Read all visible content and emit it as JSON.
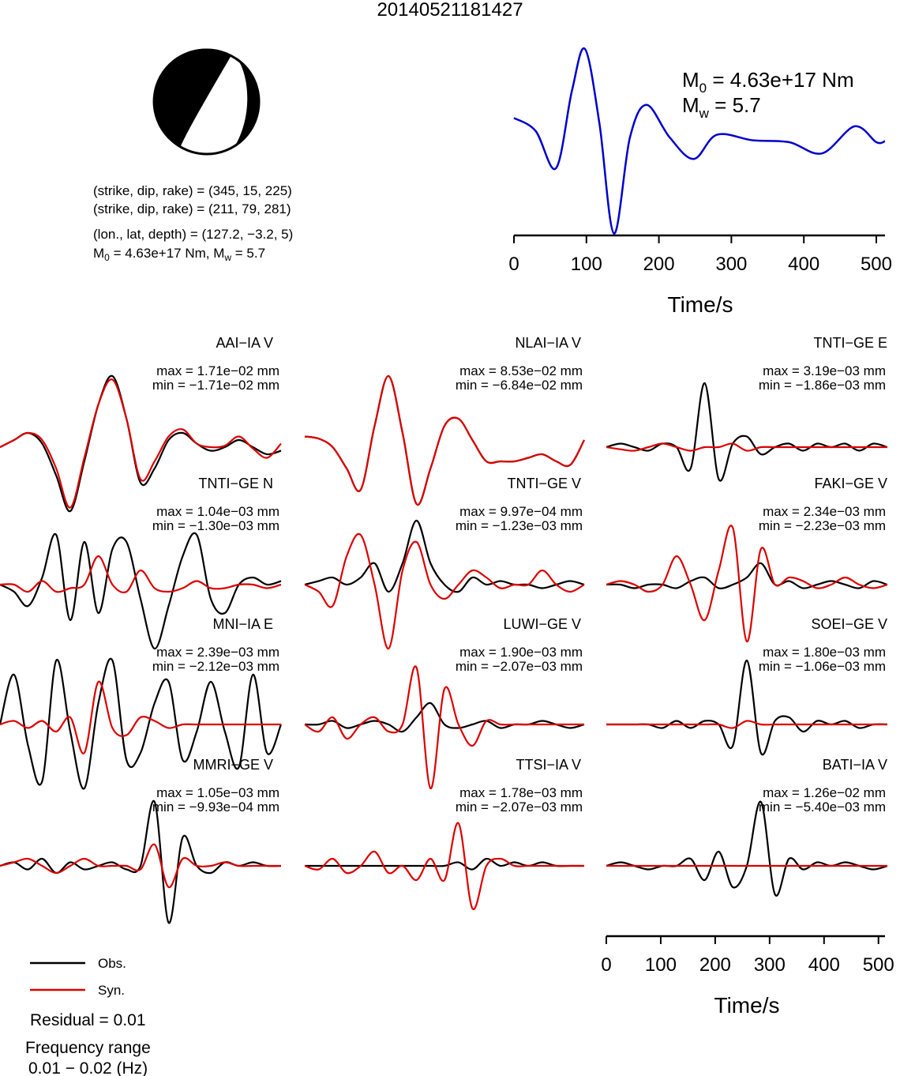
{
  "title": "20140521181427",
  "source_info": {
    "lines": [
      "(strike, dip, rake) = (345, 15, 225)",
      "(strike, dip, rake) = (211, 79, 281)",
      "(lon., lat, depth) = (127.2, −3.2, 5)"
    ],
    "m0_line_prefix": "M",
    "m0_line_sub": "0",
    "m0_line_mid": " = 4.63e+17 Nm, M",
    "m0_line_sub2": "w",
    "m0_line_end": " = 5.7"
  },
  "stf_labels": {
    "m0_prefix": "M",
    "m0_sub": "0",
    "m0_value": " = 4.63e+17 Nm",
    "mw_prefix": "M",
    "mw_sub": "w",
    "mw_value": " = 5.7"
  },
  "colors": {
    "observed": "#000000",
    "synthetic": "#dd0000",
    "stf": "#0000cc"
  },
  "legend": {
    "obs": "Obs.",
    "syn": "Syn."
  },
  "residual": "Residual = 0.01",
  "freq_label": "Frequency range",
  "freq_value": "0.01 − 0.02 (Hz)",
  "chart_data": [
    {
      "type": "line",
      "name": "source-time-function",
      "xlabel": "Time/s",
      "xlim": [
        0,
        512
      ],
      "xticks": [
        0,
        100,
        200,
        300,
        400,
        500
      ],
      "series": [
        {
          "name": "",
          "x": [
            0,
            30,
            58,
            80,
            98,
            118,
            138,
            160,
            183,
            215,
            248,
            280,
            330,
            380,
            425,
            470,
            500,
            512
          ],
          "y": [
            0.26,
            0.12,
            -0.28,
            0.55,
            1.0,
            0.2,
            -0.98,
            0.05,
            0.4,
            0.05,
            -0.18,
            0.08,
            0.02,
            0.0,
            -0.12,
            0.17,
            0.0,
            0.01
          ]
        }
      ]
    },
    {
      "type": "line",
      "name": "waveform-comparison",
      "xlabel": "Time/s",
      "xlim": [
        0,
        512
      ],
      "xticks": [
        0,
        100,
        200,
        300,
        400,
        500
      ],
      "panels": [
        {
          "station": "AAI−IA V",
          "max": "max = 1.71e−02 mm",
          "min": "min = −1.71e−02 mm",
          "obs": [
            0.0,
            0.1,
            0.2,
            0.05,
            -0.4,
            -0.9,
            -0.2,
            0.6,
            1.0,
            0.4,
            -0.5,
            -0.3,
            0.1,
            0.2,
            0.05,
            -0.05,
            0.0,
            0.1,
            0.0,
            -0.1,
            -0.05
          ],
          "syn": [
            0.0,
            0.1,
            0.2,
            0.1,
            -0.3,
            -0.85,
            -0.15,
            0.6,
            0.95,
            0.4,
            -0.45,
            -0.2,
            0.15,
            0.25,
            0.05,
            0.0,
            0.02,
            0.15,
            -0.02,
            -0.15,
            0.05
          ]
        },
        {
          "station": "NLAI−IA V",
          "max": "max = 8.53e−02 mm",
          "min": "min = −6.84e−02 mm",
          "obs": [
            0.15,
            0.12,
            0.0,
            -0.3,
            -0.6,
            0.3,
            1.0,
            0.2,
            -0.8,
            -0.3,
            0.3,
            0.4,
            0.1,
            -0.2,
            -0.2,
            -0.2,
            -0.15,
            -0.1,
            -0.2,
            -0.25,
            0.1
          ],
          "syn": [
            0.15,
            0.12,
            0.0,
            -0.3,
            -0.6,
            0.3,
            1.0,
            0.2,
            -0.8,
            -0.3,
            0.3,
            0.4,
            0.1,
            -0.2,
            -0.2,
            -0.2,
            -0.15,
            -0.1,
            -0.2,
            -0.25,
            0.1
          ]
        },
        {
          "station": "TNTI−GE E",
          "max": "max = 3.19e−03 mm",
          "min": "min = −1.86e−03 mm",
          "obs": [
            0.0,
            0.05,
            0.0,
            -0.05,
            0.05,
            0.0,
            -0.3,
            0.9,
            -0.45,
            0.05,
            0.15,
            -0.1,
            0.0,
            0.05,
            -0.05,
            0.05,
            0.0,
            0.05,
            -0.05,
            0.05,
            0.0
          ],
          "syn": [
            0.0,
            -0.03,
            -0.05,
            0.0,
            0.05,
            0.0,
            -0.05,
            0.0,
            0.0,
            0.05,
            -0.05,
            0.0,
            0.0,
            0.0,
            0.0,
            0.0,
            0.0,
            0.0,
            0.0,
            0.0,
            0.0
          ]
        },
        {
          "station": "TNTI−GE N",
          "max": "max = 1.04e−03 mm",
          "min": "min = −1.30e−03 mm",
          "obs": [
            0.0,
            -0.1,
            -0.3,
            0.1,
            0.7,
            -0.5,
            0.6,
            -0.4,
            0.5,
            0.6,
            -0.2,
            -0.9,
            -0.3,
            0.4,
            0.7,
            -0.2,
            -0.4,
            0.0,
            0.1,
            0.0,
            0.05
          ],
          "syn": [
            0.0,
            0.0,
            -0.1,
            0.05,
            -0.1,
            -0.05,
            0.0,
            0.4,
            0.0,
            -0.1,
            0.2,
            -0.05,
            -0.1,
            -0.05,
            0.05,
            -0.05,
            -0.05,
            0.0,
            0.0,
            -0.05,
            0.0
          ]
        },
        {
          "station": "TNTI−GE V",
          "max": "max = 9.97e−04 mm",
          "min": "min = −1.23e−03 mm",
          "obs": [
            0.0,
            0.05,
            0.1,
            0.0,
            0.1,
            0.3,
            -0.1,
            0.3,
            0.9,
            0.3,
            0.0,
            -0.1,
            0.1,
            0.0,
            0.05,
            0.0,
            0.0,
            -0.05,
            0.0,
            0.05,
            0.0
          ],
          "syn": [
            0.0,
            -0.1,
            -0.3,
            0.4,
            0.7,
            0.0,
            -0.9,
            0.2,
            0.6,
            0.0,
            -0.2,
            0.0,
            0.2,
            0.1,
            -0.05,
            0.0,
            0.0,
            0.2,
            0.0,
            -0.1,
            0.0
          ]
        },
        {
          "station": "FAKI−GE V",
          "max": "max = 2.34e−03 mm",
          "min": "min = −2.23e−03 mm",
          "obs": [
            0.0,
            0.0,
            -0.05,
            0.0,
            0.0,
            -0.05,
            0.05,
            0.1,
            -0.05,
            0.0,
            0.1,
            0.3,
            0.0,
            0.05,
            -0.05,
            0.0,
            0.05,
            0.0,
            -0.05,
            0.05,
            0.0
          ],
          "syn": [
            0.0,
            0.05,
            0.0,
            -0.1,
            0.0,
            0.4,
            0.0,
            -0.5,
            0.2,
            0.8,
            -0.8,
            0.5,
            0.0,
            0.1,
            0.05,
            -0.05,
            0.0,
            0.1,
            0.0,
            -0.05,
            0.0
          ]
        },
        {
          "station": "MNI−IA E",
          "max": "max = 2.39e−03 mm",
          "min": "min = −2.12e−03 mm",
          "obs": [
            0.0,
            0.7,
            -0.3,
            -0.8,
            0.9,
            -0.1,
            -0.9,
            0.3,
            0.9,
            -0.5,
            -0.4,
            0.3,
            0.6,
            -0.5,
            -0.1,
            0.6,
            -0.1,
            -0.6,
            0.7,
            -0.4,
            0.0
          ],
          "syn": [
            0.0,
            0.05,
            -0.05,
            0.05,
            -0.1,
            0.1,
            -0.4,
            0.6,
            -0.05,
            -0.15,
            0.1,
            0.05,
            -0.05,
            0.0,
            0.0,
            0.0,
            0.0,
            0.0,
            0.0,
            0.0,
            0.0
          ]
        },
        {
          "station": "LUWI−GE V",
          "max": "max = 1.90e−03 mm",
          "min": "min = −2.07e−03 mm",
          "obs": [
            0.0,
            0.0,
            0.05,
            -0.05,
            0.0,
            0.05,
            0.0,
            -0.1,
            0.1,
            0.3,
            0.0,
            -0.05,
            0.0,
            0.05,
            -0.05,
            0.0,
            0.0,
            0.05,
            0.0,
            -0.05,
            0.0
          ],
          "syn": [
            0.0,
            -0.1,
            0.1,
            -0.2,
            0.0,
            0.1,
            -0.1,
            0.0,
            0.8,
            -0.9,
            0.5,
            0.0,
            -0.3,
            0.05,
            0.0,
            0.0,
            0.0,
            0.0,
            0.0,
            0.0,
            0.0
          ]
        },
        {
          "station": "SOEI−GE V",
          "max": "max = 1.80e−03 mm",
          "min": "min = −1.06e−03 mm",
          "obs": [
            0.0,
            0.0,
            0.0,
            0.0,
            -0.05,
            0.05,
            -0.05,
            0.05,
            0.0,
            -0.3,
            0.9,
            -0.4,
            0.05,
            0.1,
            -0.1,
            0.05,
            0.0,
            0.05,
            -0.05,
            0.0,
            0.0
          ],
          "syn": [
            0.0,
            0.0,
            0.0,
            0.0,
            0.0,
            0.0,
            0.0,
            0.0,
            0.0,
            -0.05,
            0.05,
            0.0,
            0.0,
            0.0,
            0.0,
            0.0,
            0.0,
            0.0,
            0.0,
            0.0,
            0.0
          ]
        },
        {
          "station": "MMRI−GE V",
          "max": "max = 1.05e−03 mm",
          "min": "min = −9.93e−04 mm",
          "obs": [
            0.0,
            0.05,
            -0.05,
            0.1,
            -0.1,
            0.05,
            -0.05,
            0.0,
            0.05,
            -0.05,
            0.0,
            0.9,
            -0.8,
            0.4,
            0.0,
            -0.1,
            0.05,
            0.0,
            0.05,
            0.0,
            0.0
          ],
          "syn": [
            0.0,
            0.05,
            0.1,
            0.0,
            -0.1,
            0.0,
            0.1,
            0.0,
            0.0,
            0.0,
            -0.05,
            0.3,
            -0.3,
            0.1,
            0.0,
            0.0,
            0.05,
            0.0,
            0.0,
            0.0,
            0.0
          ]
        },
        {
          "station": "TTSI−IA V",
          "max": "max = 1.78e−03 mm",
          "min": "min = −2.07e−03 mm",
          "obs": [
            0.0,
            0.0,
            0.0,
            0.0,
            0.0,
            0.0,
            0.0,
            0.0,
            0.0,
            0.0,
            0.0,
            0.05,
            -0.05,
            0.1,
            0.0,
            0.05,
            0.0,
            0.05,
            0.0,
            0.0,
            0.0
          ],
          "syn": [
            0.0,
            -0.05,
            0.1,
            -0.1,
            0.0,
            0.2,
            -0.1,
            0.0,
            -0.2,
            0.1,
            -0.2,
            0.6,
            -0.6,
            0.0,
            0.1,
            0.0,
            0.0,
            0.0,
            0.0,
            0.0,
            0.0
          ]
        },
        {
          "station": "BATI−IA V",
          "max": "max = 1.26e−02 mm",
          "min": "min = −5.40e−03 mm",
          "obs": [
            0.0,
            0.05,
            0.0,
            -0.05,
            0.0,
            0.0,
            0.1,
            -0.2,
            0.2,
            -0.3,
            0.0,
            0.9,
            -0.4,
            0.1,
            -0.05,
            0.05,
            0.0,
            0.05,
            0.0,
            -0.05,
            0.0
          ],
          "syn": [
            0.0,
            0.0,
            0.0,
            0.0,
            0.0,
            0.0,
            0.0,
            0.0,
            0.0,
            0.0,
            0.0,
            0.0,
            0.0,
            0.0,
            0.0,
            0.0,
            0.0,
            0.0,
            0.0,
            0.0,
            0.0
          ]
        }
      ]
    }
  ]
}
